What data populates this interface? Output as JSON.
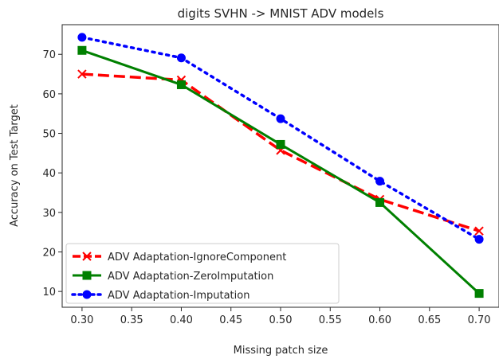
{
  "chart_data": {
    "type": "line",
    "title": "digits SVHN -> MNIST ADV models",
    "xlabel": "Missing patch size",
    "ylabel": "Accuracy on Test Target",
    "x": [
      0.3,
      0.4,
      0.5,
      0.6,
      0.7
    ],
    "xlim": [
      0.28,
      0.72
    ],
    "ylim": [
      6,
      77.5
    ],
    "xticks": [
      "0.30",
      "0.35",
      "0.40",
      "0.45",
      "0.50",
      "0.55",
      "0.60",
      "0.65",
      "0.70"
    ],
    "xtick_values": [
      0.3,
      0.35,
      0.4,
      0.45,
      0.5,
      0.55,
      0.6,
      0.65,
      0.7
    ],
    "yticks": [
      "10",
      "20",
      "30",
      "40",
      "50",
      "60",
      "70"
    ],
    "ytick_values": [
      10,
      20,
      30,
      40,
      50,
      60,
      70
    ],
    "grid": false,
    "legend_position": "lower-left",
    "series": [
      {
        "name": "ADV Adaptation-IgnoreComponent",
        "values": [
          65.0,
          63.5,
          45.7,
          33.3,
          25.3
        ],
        "color": "#ff0000",
        "linestyle": "dashed",
        "marker": "x"
      },
      {
        "name": "ADV Adaptation-ZeroImputation",
        "values": [
          71.0,
          62.3,
          47.2,
          32.5,
          9.5
        ],
        "color": "#008000",
        "linestyle": "solid",
        "marker": "square"
      },
      {
        "name": "ADV Adaptation-Imputation",
        "values": [
          74.3,
          69.1,
          53.7,
          37.9,
          23.2
        ],
        "color": "#0000ff",
        "linestyle": "dotted",
        "marker": "circle"
      }
    ]
  }
}
